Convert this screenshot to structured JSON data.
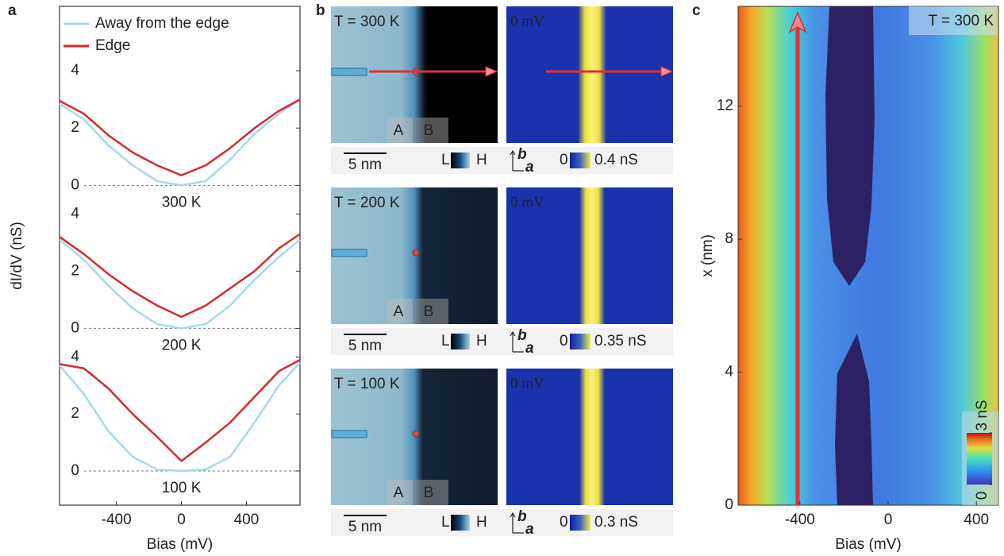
{
  "panel_labels": [
    "a",
    "b",
    "c"
  ],
  "chart_data": [
    {
      "type": "line",
      "legend": true,
      "xlim": [
        -750,
        730
      ],
      "ylim": [
        -1.1,
        6.25
      ],
      "yticks": [
        0,
        2,
        4
      ],
      "annotation": "300 K",
      "x": [
        -750,
        -600,
        -450,
        -300,
        -150,
        0,
        150,
        300,
        450,
        600,
        730
      ],
      "series": [
        {
          "name": "Away from the edge",
          "color": "#a8d8ea",
          "values": [
            2.85,
            2.3,
            1.4,
            0.7,
            0.15,
            0,
            0.15,
            0.9,
            1.8,
            2.5,
            3.0
          ]
        },
        {
          "name": "Edge",
          "color": "#d42a2a",
          "values": [
            2.95,
            2.5,
            1.75,
            1.15,
            0.7,
            0.35,
            0.7,
            1.3,
            2.0,
            2.6,
            3.0
          ]
        }
      ]
    },
    {
      "type": "line",
      "xlim": [
        -750,
        730
      ],
      "ylim": [
        -1.1,
        3.9
      ],
      "yticks": [
        0,
        2,
        4
      ],
      "annotation": "200 K",
      "ylabel": "dI/dV (nS)",
      "x": [
        -750,
        -600,
        -450,
        -300,
        -150,
        0,
        150,
        300,
        450,
        600,
        730
      ],
      "series": [
        {
          "color": "#a8d8ea",
          "values": [
            3.1,
            2.4,
            1.5,
            0.7,
            0.15,
            0,
            0.15,
            0.8,
            1.7,
            2.5,
            3.1
          ]
        },
        {
          "color": "#d42a2a",
          "values": [
            3.2,
            2.6,
            1.9,
            1.3,
            0.8,
            0.4,
            0.8,
            1.4,
            2.0,
            2.8,
            3.3
          ]
        }
      ]
    },
    {
      "type": "line",
      "xlim": [
        -750,
        730
      ],
      "ylim": [
        -1.2,
        3.9
      ],
      "yticks": [
        0,
        2,
        4
      ],
      "annotation": "100 K",
      "xlabel": "Bias (mV)",
      "xticks": [
        -400,
        0,
        400
      ],
      "x": [
        -750,
        -600,
        -450,
        -300,
        -150,
        0,
        150,
        300,
        450,
        600,
        730
      ],
      "series": [
        {
          "color": "#a8d8ea",
          "values": [
            3.7,
            2.7,
            1.4,
            0.5,
            0.05,
            0,
            0.05,
            0.5,
            1.7,
            3.0,
            3.8
          ]
        },
        {
          "color": "#d42a2a",
          "values": [
            3.75,
            3.6,
            2.9,
            2.0,
            1.2,
            0.35,
            1.0,
            1.7,
            2.6,
            3.5,
            3.9
          ]
        }
      ]
    },
    {
      "type": "heatmap",
      "xlim": [
        -680,
        500
      ],
      "ylim": [
        0,
        15
      ],
      "xticks": [
        -400,
        0,
        400
      ],
      "yticks": [
        0,
        4,
        8,
        12
      ],
      "xlabel": "Bias (mV)",
      "ylabel": "x (nm)",
      "annotation": "T = 300 K",
      "clim": [
        0,
        3
      ],
      "cticks": [
        {
          "value": 0,
          "label": "0"
        },
        {
          "value": 3,
          "label": "3 nS"
        }
      ]
    }
  ],
  "images": {
    "rows": [
      {
        "temperature": "T = 300 K",
        "bias": "0 mV",
        "region_a": "A",
        "region_b": "B",
        "scale_bar": "5 nm",
        "topo_low": "L",
        "topo_high": "H",
        "axis_b": "b",
        "axis_a": "a",
        "cond_min": "0",
        "cond_max": "0.4 nS"
      },
      {
        "temperature": "T = 200 K",
        "bias": "0 mV",
        "region_a": "A",
        "region_b": "B",
        "scale_bar": "5 nm",
        "topo_low": "L",
        "topo_high": "H",
        "axis_b": "b",
        "axis_a": "a",
        "cond_min": "0",
        "cond_max": "0.35 nS"
      },
      {
        "temperature": "T = 100 K",
        "bias": "0 mV",
        "region_a": "A",
        "region_b": "B",
        "scale_bar": "5 nm",
        "topo_low": "L",
        "topo_high": "H",
        "axis_b": "b",
        "axis_a": "a",
        "cond_min": "0",
        "cond_max": "0.3 nS"
      }
    ]
  }
}
